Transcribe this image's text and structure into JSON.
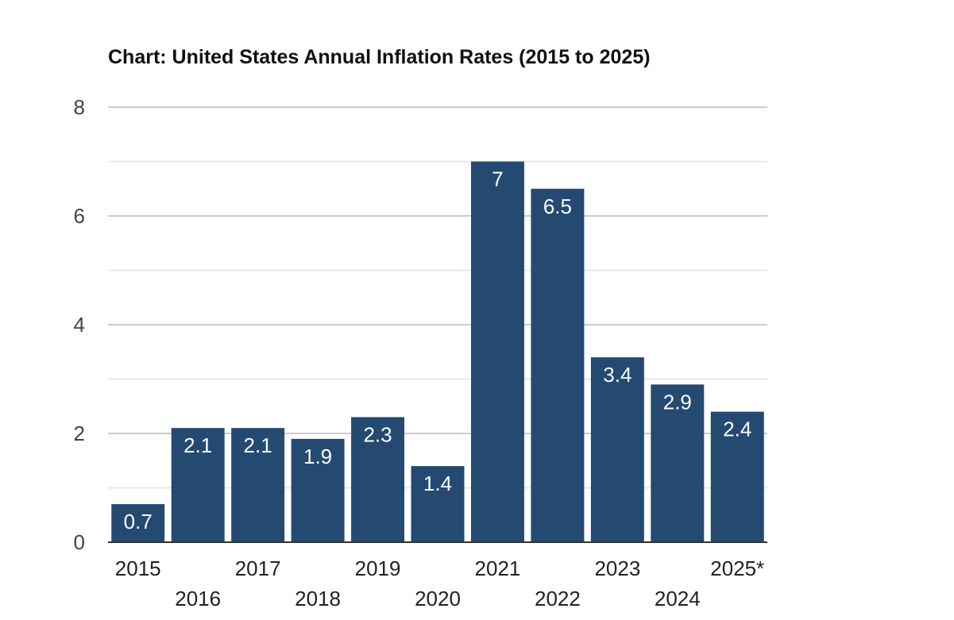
{
  "chart_data": {
    "type": "bar",
    "title": "Chart: United States Annual Inflation Rates (2015 to 2025)",
    "xlabel": "",
    "ylabel": "",
    "categories": [
      "2015",
      "2016",
      "2017",
      "2018",
      "2019",
      "2020",
      "2021",
      "2022",
      "2023",
      "2024",
      "2025*"
    ],
    "values": [
      0.7,
      2.1,
      2.1,
      1.9,
      2.3,
      1.4,
      7,
      6.5,
      3.4,
      2.9,
      2.4
    ],
    "data_labels": [
      "0.7",
      "2.1",
      "2.1",
      "1.9",
      "2.3",
      "1.4",
      "7",
      "6.5",
      "3.4",
      "2.9",
      "2.4"
    ],
    "ylim": [
      0,
      8
    ],
    "yticks": [
      "0",
      "2",
      "4",
      "6",
      "8"
    ],
    "grid": true,
    "legend": "none",
    "bar_color": "#244a72",
    "gridline_color": "#cccccc",
    "minor_gridline_color": "#e8e8e8",
    "axis_color": "#333333"
  }
}
